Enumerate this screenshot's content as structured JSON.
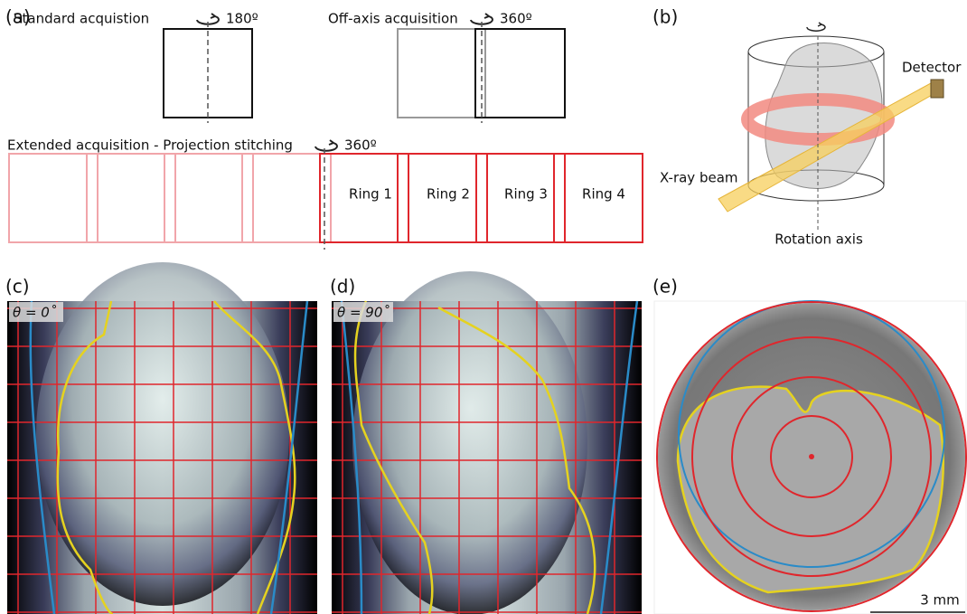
{
  "panels": {
    "a": {
      "label": "(a)",
      "standard": {
        "title": "Standard acquistion",
        "angle": "180º"
      },
      "offaxis": {
        "title": "Off-axis acquisition",
        "angle": "360º"
      },
      "extended": {
        "title": "Extended acquisition - Projection stitching",
        "angle": "360º",
        "rings": [
          "Ring 1",
          "Ring 2",
          "Ring 3",
          "Ring 4"
        ]
      }
    },
    "b": {
      "label": "(b)",
      "detector": "Detector",
      "beam": "X-ray beam",
      "axis": "Rotation axis"
    },
    "c": {
      "label": "(c)",
      "angle": "θ = 0˚"
    },
    "d": {
      "label": "(d)",
      "angle": "θ = 90˚"
    },
    "e": {
      "label": "(e)",
      "scale": "3 mm"
    }
  }
}
